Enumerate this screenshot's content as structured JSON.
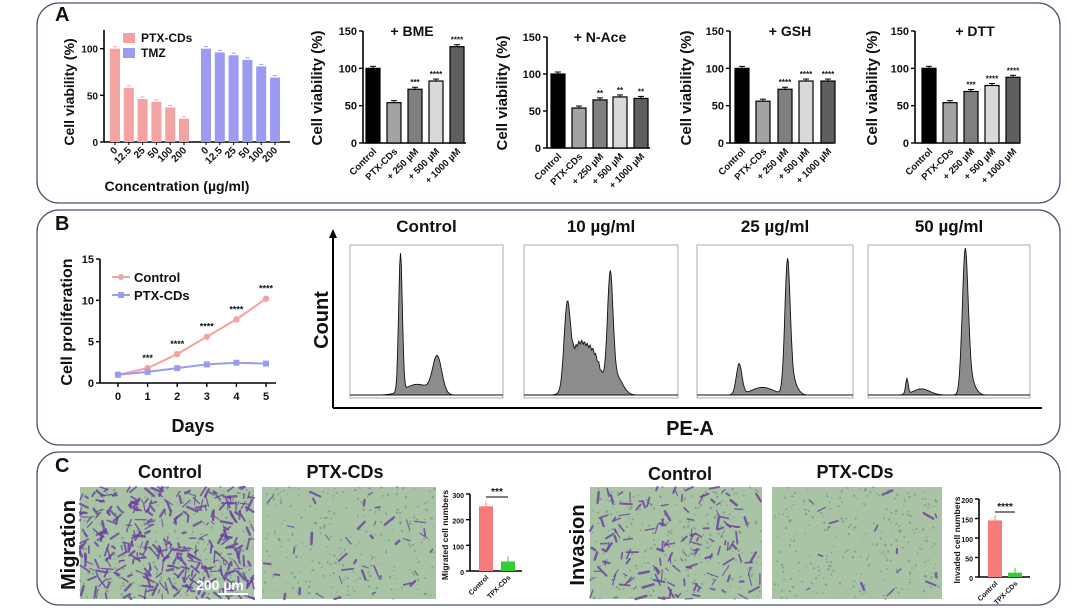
{
  "panels": {
    "A": {
      "label": "A"
    },
    "B": {
      "label": "B"
    },
    "C": {
      "label": "C",
      "migration": {
        "row_label": "Migration",
        "control_title": "Control",
        "treated_title": "PTX-CDs",
        "scale_bar": "200 µm"
      },
      "invasion": {
        "row_label": "Invasion",
        "control_title": "Control",
        "treated_title": "PTX-CDs"
      }
    }
  },
  "colors": {
    "ptx_cds": "#f4a3a3",
    "tmz": "#9b9bf2",
    "control_bar": "#f77b7b",
    "treated_bar": "#33cc33",
    "histogram_fill": "#8c8c8c",
    "micrograph_bg": "#a9c4a4",
    "stain": "#6b3fa0"
  },
  "chart_data": [
    {
      "id": "a_viability",
      "type": "bar",
      "ylabel": "Cell viability (%)",
      "xlabel": "Concentration (µg/ml)",
      "ylim": [
        0,
        120
      ],
      "yticks": [
        0,
        50,
        100
      ],
      "categories": [
        "0",
        "12.5",
        "25",
        "50",
        "100",
        "200"
      ],
      "legend": "top-left",
      "series": [
        {
          "name": "PTX-CDs",
          "values": [
            100,
            58,
            46,
            43,
            37,
            25
          ],
          "color": "#f4a3a3"
        },
        {
          "name": "TMZ",
          "values": [
            100,
            96,
            93,
            88,
            81,
            69
          ],
          "color": "#9b9bf2"
        }
      ]
    },
    {
      "id": "a_bme",
      "type": "bar",
      "title": "+ BME",
      "ylabel": "Cell viability (%)",
      "ylim": [
        0,
        150
      ],
      "yticks": [
        0,
        50,
        100,
        150
      ],
      "categories": [
        "Control",
        "PTX-CDs",
        "+ 250 µM",
        "+ 500 µM",
        "+ 1000 µM"
      ],
      "values": [
        100,
        54,
        72,
        83,
        129
      ],
      "significance": [
        "",
        "",
        "***",
        "****",
        "****"
      ],
      "colors": [
        "#000000",
        "#a3a3a3",
        "#7f7f7f",
        "#d9d9d9",
        "#5f5f5f"
      ]
    },
    {
      "id": "a_nace",
      "type": "bar",
      "title": "+ N-Ace",
      "ylabel": "Cell viability (%)",
      "ylim": [
        0,
        150
      ],
      "yticks": [
        0,
        50,
        100,
        150
      ],
      "categories": [
        "Control",
        "PTX-CDs",
        "+ 250 µM",
        "+ 500 µM",
        "+ 1000 µM"
      ],
      "values": [
        100,
        54,
        65,
        69,
        67
      ],
      "significance": [
        "",
        "",
        "**",
        "**",
        "**"
      ],
      "colors": [
        "#000000",
        "#a3a3a3",
        "#7f7f7f",
        "#d9d9d9",
        "#5f5f5f"
      ]
    },
    {
      "id": "a_gsh",
      "type": "bar",
      "title": "+ GSH",
      "ylabel": "Cell viability (%)",
      "ylim": [
        0,
        150
      ],
      "yticks": [
        0,
        50,
        100,
        150
      ],
      "categories": [
        "Control",
        "PTX-CDs",
        "+ 250 µM",
        "+ 500 µM",
        "+ 1000 µM"
      ],
      "values": [
        100,
        56,
        72,
        83,
        83
      ],
      "significance": [
        "",
        "",
        "****",
        "****",
        "****"
      ],
      "colors": [
        "#000000",
        "#a3a3a3",
        "#7f7f7f",
        "#d9d9d9",
        "#5f5f5f"
      ]
    },
    {
      "id": "a_dtt",
      "type": "bar",
      "title": "+ DTT",
      "ylabel": "Cell viability (%)",
      "ylim": [
        0,
        150
      ],
      "yticks": [
        0,
        50,
        100,
        150
      ],
      "categories": [
        "Control",
        "PTX-CDs",
        "+ 250 µM",
        "+ 500 µM",
        "+ 1000 µM"
      ],
      "values": [
        100,
        54,
        69,
        77,
        88
      ],
      "significance": [
        "",
        "",
        "***",
        "****",
        "****"
      ],
      "colors": [
        "#000000",
        "#a3a3a3",
        "#7f7f7f",
        "#d9d9d9",
        "#5f5f5f"
      ]
    },
    {
      "id": "b_proliferation",
      "type": "line",
      "xlabel": "Days",
      "ylabel": "Cell proliferation",
      "x": [
        0,
        1,
        2,
        3,
        4,
        5
      ],
      "xticks": [
        0,
        1,
        2,
        3,
        4,
        5
      ],
      "ylim": [
        0,
        15
      ],
      "yticks": [
        0,
        5,
        10,
        15
      ],
      "legend": "top-left",
      "series": [
        {
          "name": "Control",
          "values": [
            1.0,
            1.8,
            3.5,
            5.6,
            7.7,
            10.2
          ],
          "color": "#f4a3a3",
          "marker": "circle"
        },
        {
          "name": "PTX-CDs",
          "values": [
            1.0,
            1.35,
            1.8,
            2.25,
            2.45,
            2.35
          ],
          "color": "#9b9bf2",
          "marker": "square"
        }
      ],
      "significance": [
        "",
        "***",
        "****",
        "****",
        "****",
        "****"
      ]
    },
    {
      "id": "b_cell_cycle",
      "type": "area",
      "xlabel": "PE-A",
      "ylabel": "Count",
      "panels": [
        "Control",
        "10 µg/ml",
        "25 µg/ml",
        "50 µg/ml"
      ]
    },
    {
      "id": "c_migration",
      "type": "bar",
      "ylabel": "Migrated cell numbers",
      "ylim": [
        0,
        300
      ],
      "yticks": [
        0,
        100,
        200,
        300
      ],
      "categories": [
        "Control",
        "TPX-CDs"
      ],
      "values": [
        252,
        37
      ],
      "significance": "***",
      "colors": [
        "#f77b7b",
        "#33cc33"
      ]
    },
    {
      "id": "c_invasion",
      "type": "bar",
      "ylabel": "Invaded cell numbers",
      "ylim": [
        0,
        200
      ],
      "yticks": [
        0,
        50,
        100,
        150,
        200
      ],
      "categories": [
        "Control",
        "TPX-CDs"
      ],
      "values": [
        145,
        11
      ],
      "significance": "****",
      "colors": [
        "#f77b7b",
        "#33cc33"
      ]
    }
  ]
}
